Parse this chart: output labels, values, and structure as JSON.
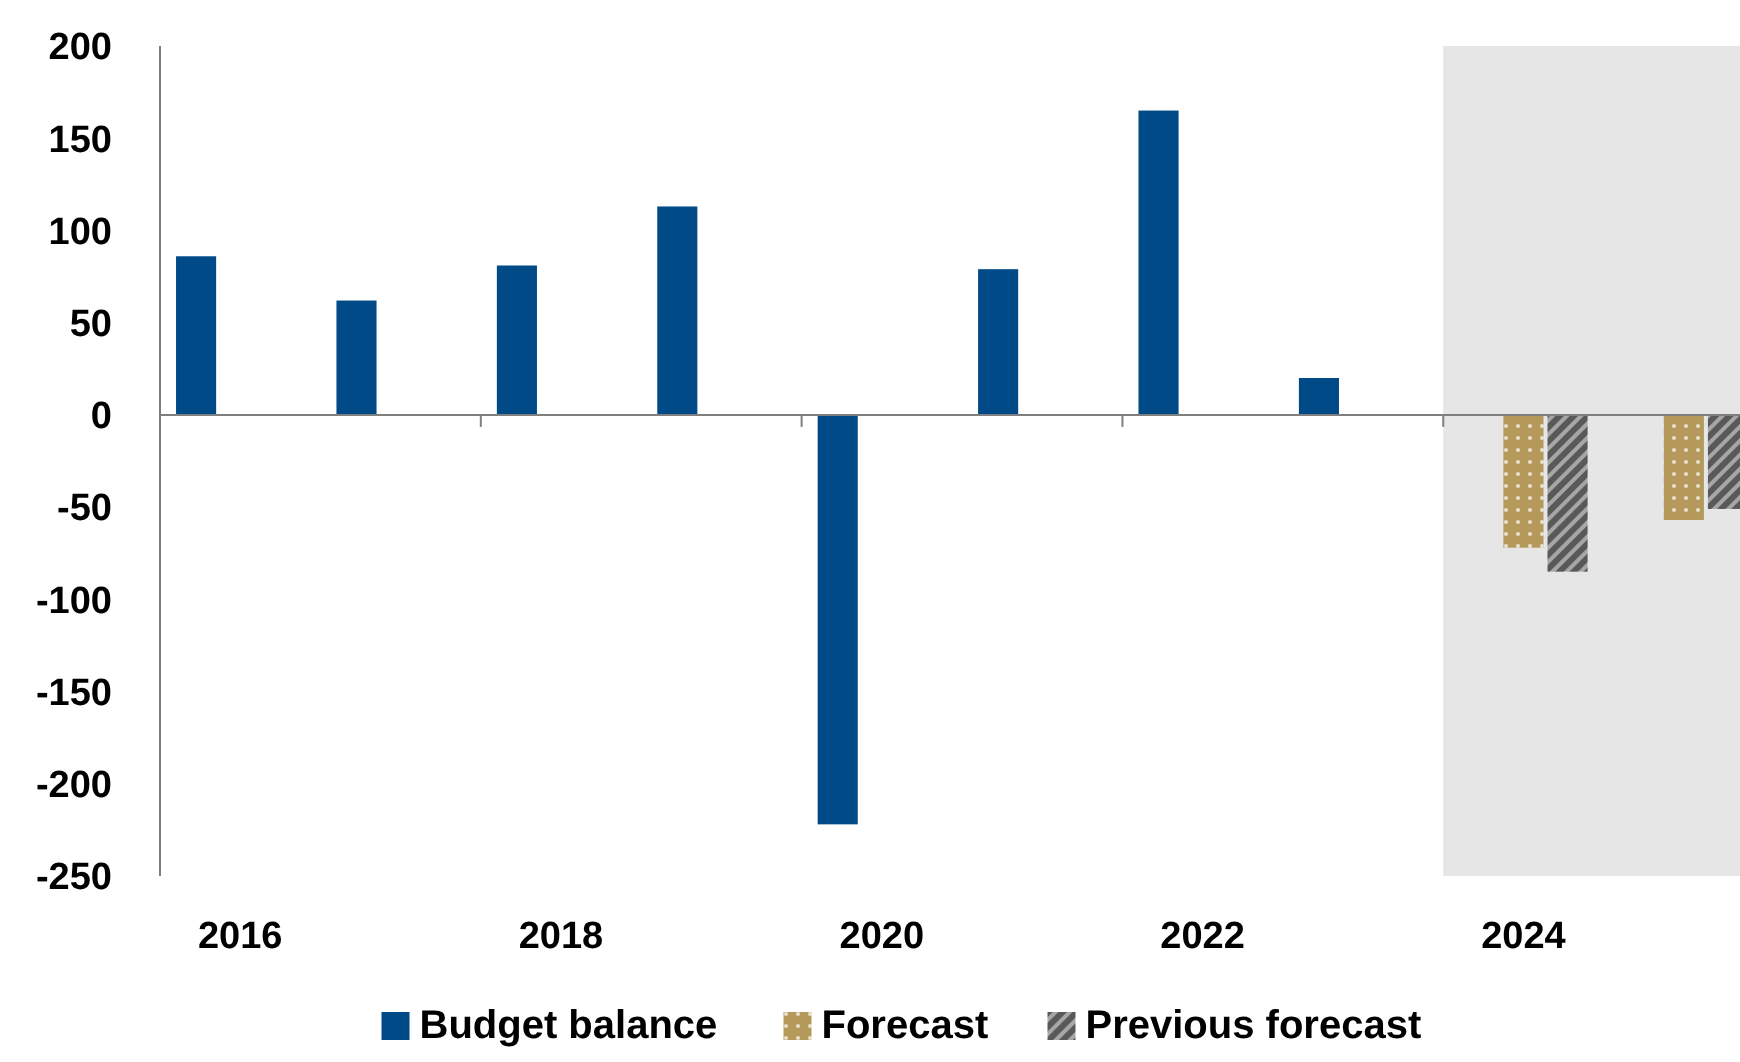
{
  "chart_data": {
    "type": "bar",
    "x": [
      2016,
      2017,
      2018,
      2019,
      2020,
      2021,
      2022,
      2023,
      2024,
      2025
    ],
    "series": [
      {
        "name": "Budget balance",
        "color": "#004b87",
        "values": [
          86,
          62,
          81,
          113,
          -222,
          79,
          165,
          20,
          null,
          null
        ]
      },
      {
        "name": "Forecast",
        "color": "#b5995a",
        "values": [
          null,
          null,
          null,
          null,
          null,
          null,
          null,
          null,
          -72,
          -57
        ]
      },
      {
        "name": "Previous forecast",
        "color": "#595959",
        "values": [
          null,
          null,
          null,
          null,
          null,
          null,
          null,
          null,
          -85,
          -51
        ]
      }
    ],
    "xlim": [
      2015.5,
      2025.35
    ],
    "xticks": [
      2016,
      {
        "value": 2017.5,
        "label": null
      },
      2018,
      {
        "value": 2019.5,
        "label": null
      },
      2020,
      {
        "value": 2021.5,
        "label": null
      },
      2022,
      {
        "value": 2023.5,
        "label": null
      },
      2024
    ],
    "ylim": [
      -250,
      200
    ],
    "yticks": [
      -250,
      -200,
      -150,
      -100,
      -50,
      0,
      50,
      100,
      150,
      200
    ],
    "bands": [
      {
        "axis": "x",
        "from": 2023.5,
        "to": 2025.35,
        "color": "#e6e6e6"
      }
    ],
    "legend": "bottom"
  }
}
